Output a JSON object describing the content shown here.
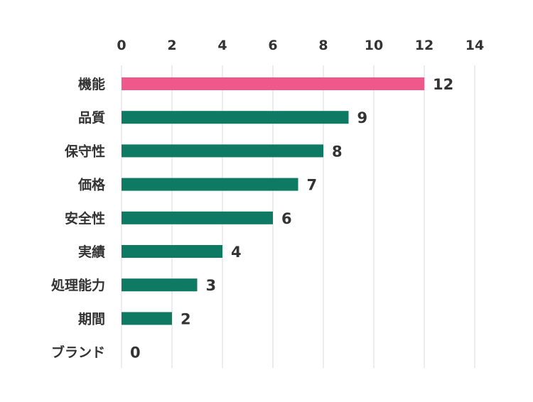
{
  "chart_data": {
    "type": "bar",
    "orientation": "horizontal",
    "categories": [
      "機能",
      "品質",
      "保守性",
      "価格",
      "安全性",
      "実績",
      "処理能力",
      "期間",
      "ブランド"
    ],
    "values": [
      12,
      9,
      8,
      7,
      6,
      4,
      3,
      2,
      0
    ],
    "title": "",
    "xlabel": "",
    "ylabel": "",
    "xlim": [
      0,
      14
    ],
    "x_ticks": [
      "0",
      "2",
      "4",
      "6",
      "8",
      "10",
      "12",
      "14"
    ],
    "x_tick_position": "top",
    "grid": true,
    "legend": "none",
    "data_labels": true,
    "colors": {
      "highlight": "#f0578a",
      "default": "#0f7a63",
      "grid": "#d9d9d9",
      "text": "#333333"
    },
    "highlight_index": 0
  }
}
